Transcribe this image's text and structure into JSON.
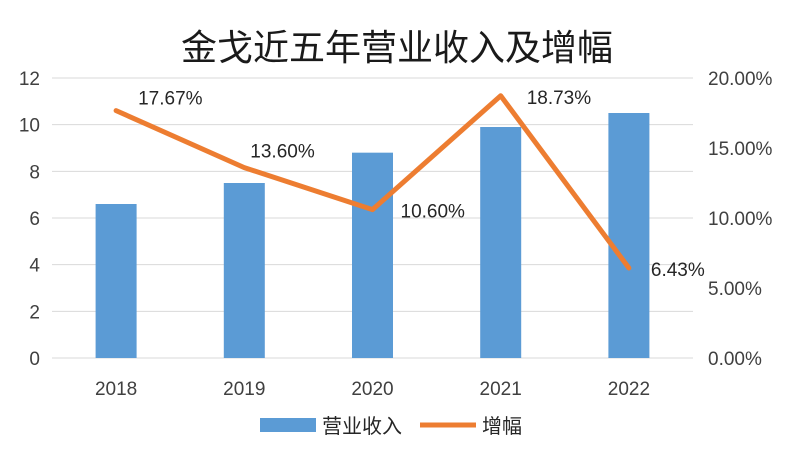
{
  "chart_data": {
    "type": "bar+line",
    "title": "金戈近五年营业收入及增幅",
    "categories": [
      "2018",
      "2019",
      "2020",
      "2021",
      "2022"
    ],
    "series": [
      {
        "name": "营业收入",
        "type": "bar",
        "axis": "left",
        "values": [
          6.6,
          7.5,
          8.8,
          9.9,
          10.5
        ]
      },
      {
        "name": "增幅",
        "type": "line",
        "axis": "right",
        "values": [
          17.67,
          13.6,
          10.6,
          18.73,
          6.43
        ],
        "labels": [
          "17.67%",
          "13.60%",
          "10.60%",
          "18.73%",
          "6.43%"
        ]
      }
    ],
    "left_axis": {
      "min": 0,
      "max": 12,
      "ticks": [
        "0",
        "2",
        "4",
        "6",
        "8",
        "10",
        "12"
      ]
    },
    "right_axis": {
      "min": 0,
      "max": 20,
      "ticks": [
        "0.00%",
        "5.00%",
        "10.00%",
        "15.00%",
        "20.00%"
      ]
    },
    "grid": true,
    "legend": "bottom",
    "colors": {
      "bar": "#5b9bd5",
      "line": "#ed7d31",
      "grid": "#d9d9d9",
      "text": "#404040"
    }
  }
}
